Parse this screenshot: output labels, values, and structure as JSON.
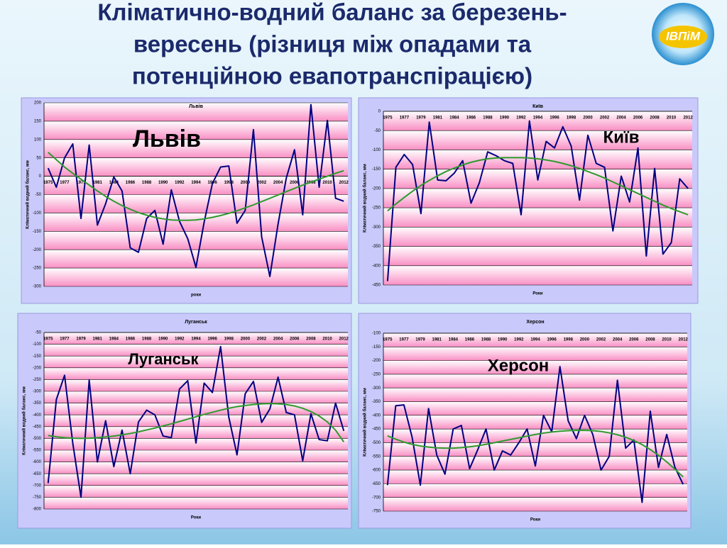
{
  "title": [
    "Кліматично-водний баланс за березень-",
    "вересень (різниця між опадами та",
    "потенційною евапотранспірацією)"
  ],
  "logo": "ІВПіМ",
  "chart_data": [
    {
      "type": "line",
      "title": "Львів",
      "label": "Львів",
      "xlabel": "роки",
      "ylabel": "Кліматичний водний баланс, мм",
      "categories": [
        1975,
        null,
        1977,
        null,
        1979,
        null,
        1981,
        null,
        1984,
        null,
        1986,
        null,
        1988,
        null,
        1990,
        null,
        1992,
        null,
        1994,
        null,
        1996,
        null,
        1998,
        null,
        2000,
        null,
        2002,
        null,
        2004,
        null,
        2006,
        null,
        2008,
        null,
        2010,
        null,
        2012
      ],
      "series": [
        {
          "color": "#000080",
          "values": [
            22,
            -30,
            50,
            88,
            -115,
            85,
            -133,
            -75,
            -2,
            -40,
            -195,
            -207,
            -115,
            -93,
            -185,
            -37,
            -123,
            -170,
            -248,
            -125,
            -20,
            25,
            28,
            -128,
            -93,
            127,
            -165,
            -273,
            -130,
            -5,
            72,
            -105,
            195,
            -30,
            152,
            -60,
            -68
          ]
        },
        {
          "color": "#2e9a2e",
          "values": [
            65,
            45,
            25,
            8,
            -8,
            -24,
            -40,
            -55,
            -68,
            -80,
            -90,
            -99,
            -106,
            -112,
            -116,
            -119,
            -120,
            -120,
            -119,
            -116,
            -112,
            -107,
            -101,
            -94,
            -86,
            -78,
            -69,
            -60,
            -51,
            -42,
            -33,
            -24,
            -16,
            -8,
            0,
            8,
            15
          ]
        }
      ],
      "ylim": [
        -300,
        200
      ],
      "yticks": [
        -300,
        -250,
        -200,
        -150,
        -100,
        -50,
        0,
        50,
        100,
        150,
        200
      ],
      "grid": true
    },
    {
      "type": "line",
      "title": "Київ",
      "label": "Київ",
      "xlabel": "Роки",
      "ylabel": "Кліматичний водний баланс, мм",
      "categories": [
        1975,
        null,
        1977,
        null,
        1979,
        null,
        1981,
        null,
        1984,
        null,
        1986,
        null,
        1988,
        null,
        1990,
        null,
        1992,
        null,
        1994,
        null,
        1996,
        null,
        1998,
        null,
        2000,
        null,
        2002,
        null,
        2004,
        null,
        2006,
        null,
        2008,
        null,
        2010,
        null,
        2012
      ],
      "series": [
        {
          "color": "#000080",
          "values": [
            -440,
            -145,
            -112,
            -138,
            -265,
            -28,
            -178,
            -180,
            -160,
            -128,
            -238,
            -185,
            -105,
            -115,
            -128,
            -135,
            -268,
            -25,
            -178,
            -78,
            -95,
            -40,
            -90,
            -230,
            -62,
            -135,
            -145,
            -310,
            -168,
            -235,
            -95,
            -375,
            -148,
            -370,
            -340,
            -175,
            -200
          ]
        },
        {
          "color": "#2e9a2e",
          "values": [
            -258,
            -240,
            -223,
            -207,
            -192,
            -179,
            -167,
            -156,
            -147,
            -139,
            -132,
            -127,
            -123,
            -121,
            -120,
            -120,
            -120,
            -121,
            -123,
            -126,
            -130,
            -135,
            -141,
            -148,
            -156,
            -164,
            -173,
            -183,
            -193,
            -203,
            -213,
            -223,
            -233,
            -243,
            -252,
            -260,
            -268
          ]
        }
      ],
      "ylim": [
        -450,
        0
      ],
      "yticks": [
        -450,
        -400,
        -350,
        -300,
        -250,
        -200,
        -150,
        -100,
        -50,
        0
      ],
      "grid": true
    },
    {
      "type": "line",
      "title": "Луганськ",
      "label": "Луганськ",
      "xlabel": "Роки",
      "ylabel": "Кліматичний водний баланс, мм",
      "categories": [
        1975,
        null,
        1977,
        null,
        1979,
        null,
        1981,
        null,
        1984,
        null,
        1986,
        null,
        1988,
        null,
        1990,
        null,
        1992,
        null,
        1994,
        null,
        1996,
        null,
        1998,
        null,
        2000,
        null,
        2002,
        null,
        2004,
        null,
        2006,
        null,
        2008,
        null,
        2010,
        null,
        2012
      ],
      "series": [
        {
          "color": "#000080",
          "values": [
            -690,
            -335,
            -232,
            -520,
            -750,
            -252,
            -600,
            -425,
            -620,
            -465,
            -650,
            -430,
            -380,
            -400,
            -490,
            -497,
            -290,
            -255,
            -520,
            -265,
            -305,
            -110,
            -410,
            -570,
            -310,
            -258,
            -432,
            -375,
            -240,
            -390,
            -400,
            -595,
            -395,
            -505,
            -510,
            -350,
            -468
          ]
        },
        {
          "color": "#2e9a2e",
          "values": [
            -488,
            -493,
            -497,
            -499,
            -500,
            -499,
            -497,
            -494,
            -490,
            -485,
            -479,
            -472,
            -464,
            -456,
            -447,
            -438,
            -428,
            -418,
            -408,
            -398,
            -389,
            -380,
            -372,
            -365,
            -360,
            -356,
            -353,
            -352,
            -353,
            -356,
            -362,
            -372,
            -386,
            -405,
            -430,
            -465,
            -515
          ]
        }
      ],
      "ylim": [
        -800,
        -50
      ],
      "yticks": [
        -800,
        -750,
        -700,
        -650,
        -600,
        -550,
        -500,
        -450,
        -400,
        -350,
        -300,
        -250,
        -200,
        -150,
        -100,
        -50
      ],
      "grid": true
    },
    {
      "type": "line",
      "title": "Херсон",
      "label": "Херсон",
      "xlabel": "Роки",
      "ylabel": "Кліматичний водний баланс, мм",
      "categories": [
        1975,
        null,
        1977,
        null,
        1979,
        null,
        1981,
        null,
        1984,
        null,
        1986,
        null,
        1988,
        null,
        1990,
        null,
        1992,
        null,
        1994,
        null,
        1996,
        null,
        1998,
        null,
        2000,
        null,
        2002,
        null,
        2004,
        null,
        2006,
        null,
        2008,
        null,
        2010,
        null,
        2012
      ],
      "series": [
        {
          "color": "#000080",
          "values": [
            -655,
            -365,
            -362,
            -480,
            -655,
            -375,
            -545,
            -615,
            -450,
            -437,
            -595,
            -525,
            -450,
            -600,
            -530,
            -545,
            -500,
            -450,
            -585,
            -400,
            -460,
            -222,
            -420,
            -485,
            -400,
            -470,
            -600,
            -550,
            -272,
            -520,
            -490,
            -718,
            -385,
            -590,
            -470,
            -590,
            -652
          ]
        },
        {
          "color": "#2e9a2e",
          "values": [
            -475,
            -487,
            -498,
            -506,
            -512,
            -516,
            -519,
            -520,
            -520,
            -518,
            -515,
            -511,
            -506,
            -500,
            -494,
            -488,
            -482,
            -476,
            -470,
            -465,
            -461,
            -458,
            -456,
            -455,
            -455,
            -456,
            -459,
            -464,
            -471,
            -480,
            -492,
            -507,
            -525,
            -546,
            -570,
            -597,
            -625
          ]
        }
      ],
      "ylim": [
        -750,
        -100
      ],
      "yticks": [
        -750,
        -700,
        -650,
        -600,
        -550,
        -500,
        -450,
        -400,
        -350,
        -300,
        -250,
        -200,
        -150,
        -100
      ],
      "grid": true
    }
  ]
}
